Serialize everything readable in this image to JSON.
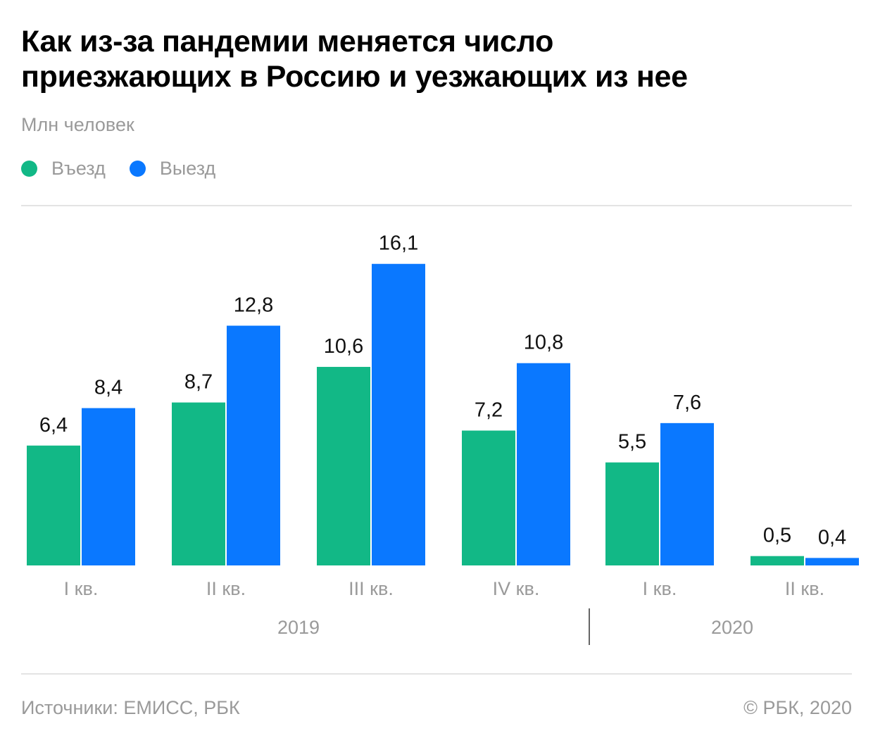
{
  "title_line1": "Как из-за пандемии меняется число",
  "title_line2": "приезжающих в Россию и уезжающих из нее",
  "subtitle": "Млн человек",
  "legend": [
    {
      "label": "Въезд",
      "color": "#12b886"
    },
    {
      "label": "Выезд",
      "color": "#0a78ff"
    }
  ],
  "chart_data": {
    "type": "bar",
    "categories": [
      "I кв.",
      "II кв.",
      "III кв.",
      "IV кв.",
      "I кв.",
      "II кв."
    ],
    "groups": [
      {
        "label": "2019",
        "categories": [
          0,
          1,
          2,
          3
        ]
      },
      {
        "label": "2020",
        "categories": [
          4,
          5
        ]
      }
    ],
    "series": [
      {
        "name": "Въезд",
        "color": "#12b886",
        "values": [
          6.4,
          8.7,
          10.6,
          7.2,
          5.5,
          0.5
        ],
        "labels": [
          "6,4",
          "8,7",
          "10,6",
          "7,2",
          "5,5",
          "0,5"
        ]
      },
      {
        "name": "Выезд",
        "color": "#0a78ff",
        "values": [
          8.4,
          12.8,
          16.1,
          10.8,
          7.6,
          0.4
        ],
        "labels": [
          "8,4",
          "12,8",
          "16,1",
          "10,8",
          "7,6",
          "0,4"
        ]
      }
    ],
    "ylabel": "Млн человек",
    "ylim": [
      0,
      16.1
    ],
    "grid": false,
    "legend_position": "top-left"
  },
  "footer": {
    "sources": "Источники: ЕМИСС, РБК",
    "copyright": "© РБК, 2020"
  }
}
